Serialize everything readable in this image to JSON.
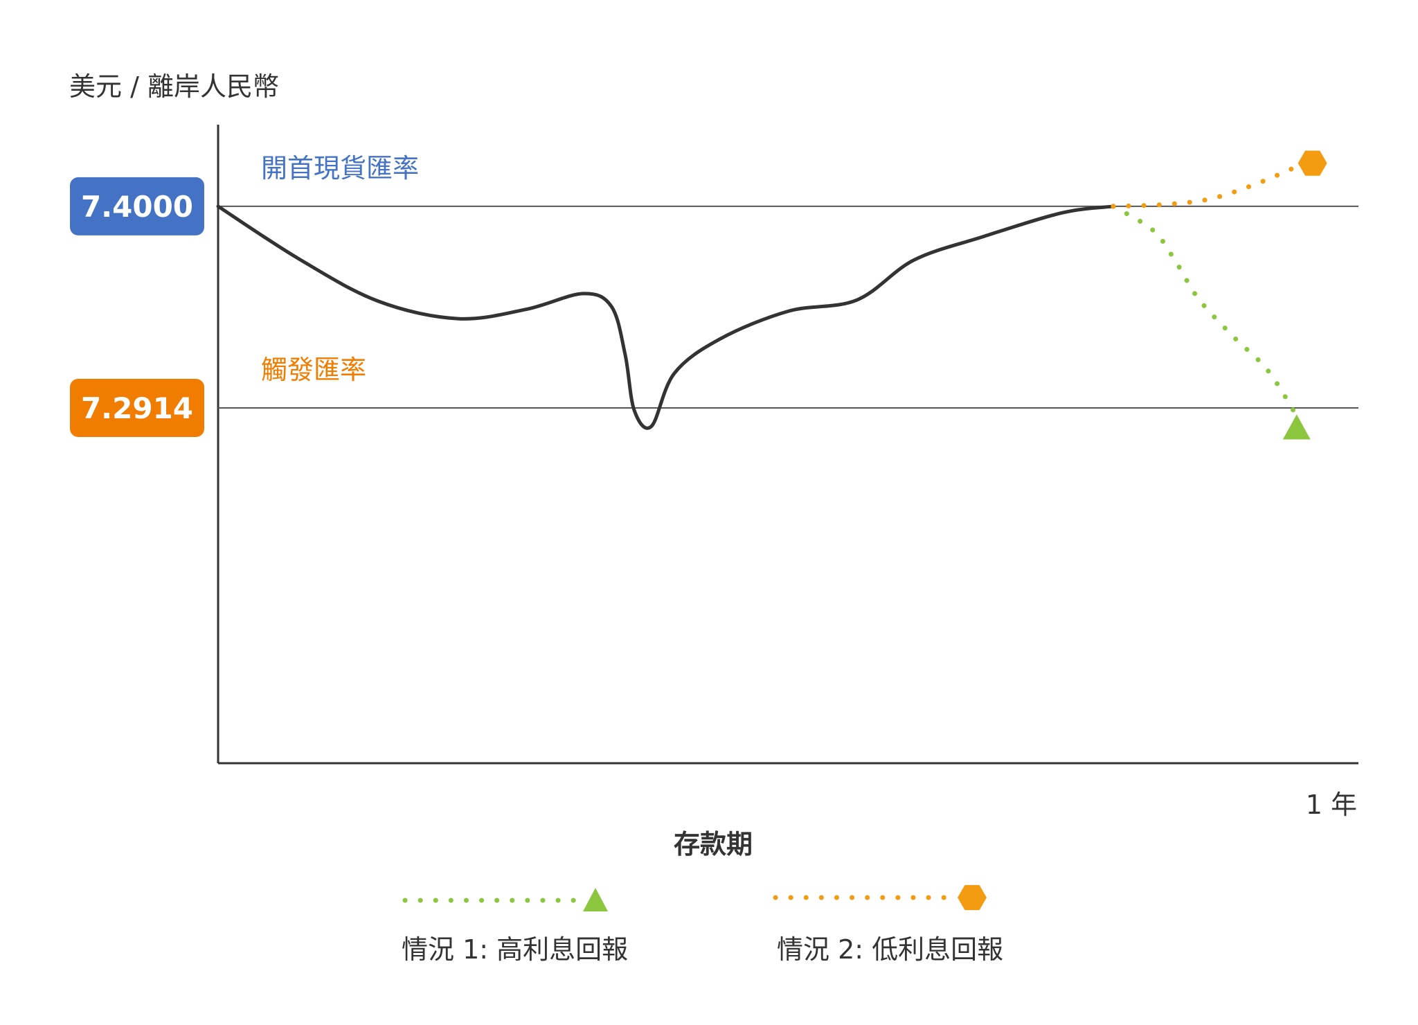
{
  "chart_data": {
    "type": "line",
    "ylabel": "美元 / 離岸人民幣",
    "xlabel": "存款期",
    "x_end_label": "1 年",
    "reference_lines": [
      {
        "label": "開首現貨匯率",
        "value": "7.4000",
        "y": 7.4,
        "color": "#4472c4"
      },
      {
        "label": "觸發匯率",
        "value": "7.2914",
        "y": 7.2914,
        "color": "#f07d00"
      }
    ],
    "ylim": [
      7.1,
      7.444
    ],
    "xlim": [
      0,
      1
    ],
    "series": [
      {
        "style": "solid",
        "color": "#333333",
        "points": [
          [
            0,
            7.4
          ],
          [
            0.07,
            7.372
          ],
          [
            0.14,
            7.349
          ],
          [
            0.21,
            7.3395
          ],
          [
            0.27,
            7.3445
          ],
          [
            0.32,
            7.353
          ],
          [
            0.345,
            7.346
          ],
          [
            0.357,
            7.32
          ],
          [
            0.365,
            7.29
          ],
          [
            0.38,
            7.2815
          ],
          [
            0.4,
            7.31
          ],
          [
            0.44,
            7.3285
          ],
          [
            0.5,
            7.3435
          ],
          [
            0.56,
            7.3495
          ],
          [
            0.61,
            7.371
          ],
          [
            0.67,
            7.3835
          ],
          [
            0.74,
            7.3965
          ],
          [
            0.785,
            7.4
          ]
        ]
      },
      {
        "name": "情況 1: 高利息回報",
        "style": "dotted",
        "color": "#8cc63f",
        "marker": "triangle",
        "points": [
          [
            0.785,
            7.4
          ],
          [
            0.82,
            7.387
          ],
          [
            0.84,
            7.37
          ],
          [
            0.86,
            7.35
          ],
          [
            0.89,
            7.33
          ],
          [
            0.92,
            7.312
          ],
          [
            0.944,
            7.289
          ]
        ]
      },
      {
        "name": "情況 2: 低利息回報",
        "style": "dotted",
        "color": "#f39c12",
        "marker": "hexagon",
        "points": [
          [
            0.785,
            7.4
          ],
          [
            0.83,
            7.401
          ],
          [
            0.87,
            7.404
          ],
          [
            0.91,
            7.412
          ],
          [
            0.95,
            7.4225
          ]
        ]
      }
    ],
    "legend": {
      "placement": "bottom",
      "items": [
        {
          "label": "情況 1: 高利息回報",
          "color": "#8cc63f",
          "marker": "triangle"
        },
        {
          "label": "情況 2: 低利息回報",
          "color": "#f39c12",
          "marker": "hexagon"
        }
      ]
    }
  }
}
